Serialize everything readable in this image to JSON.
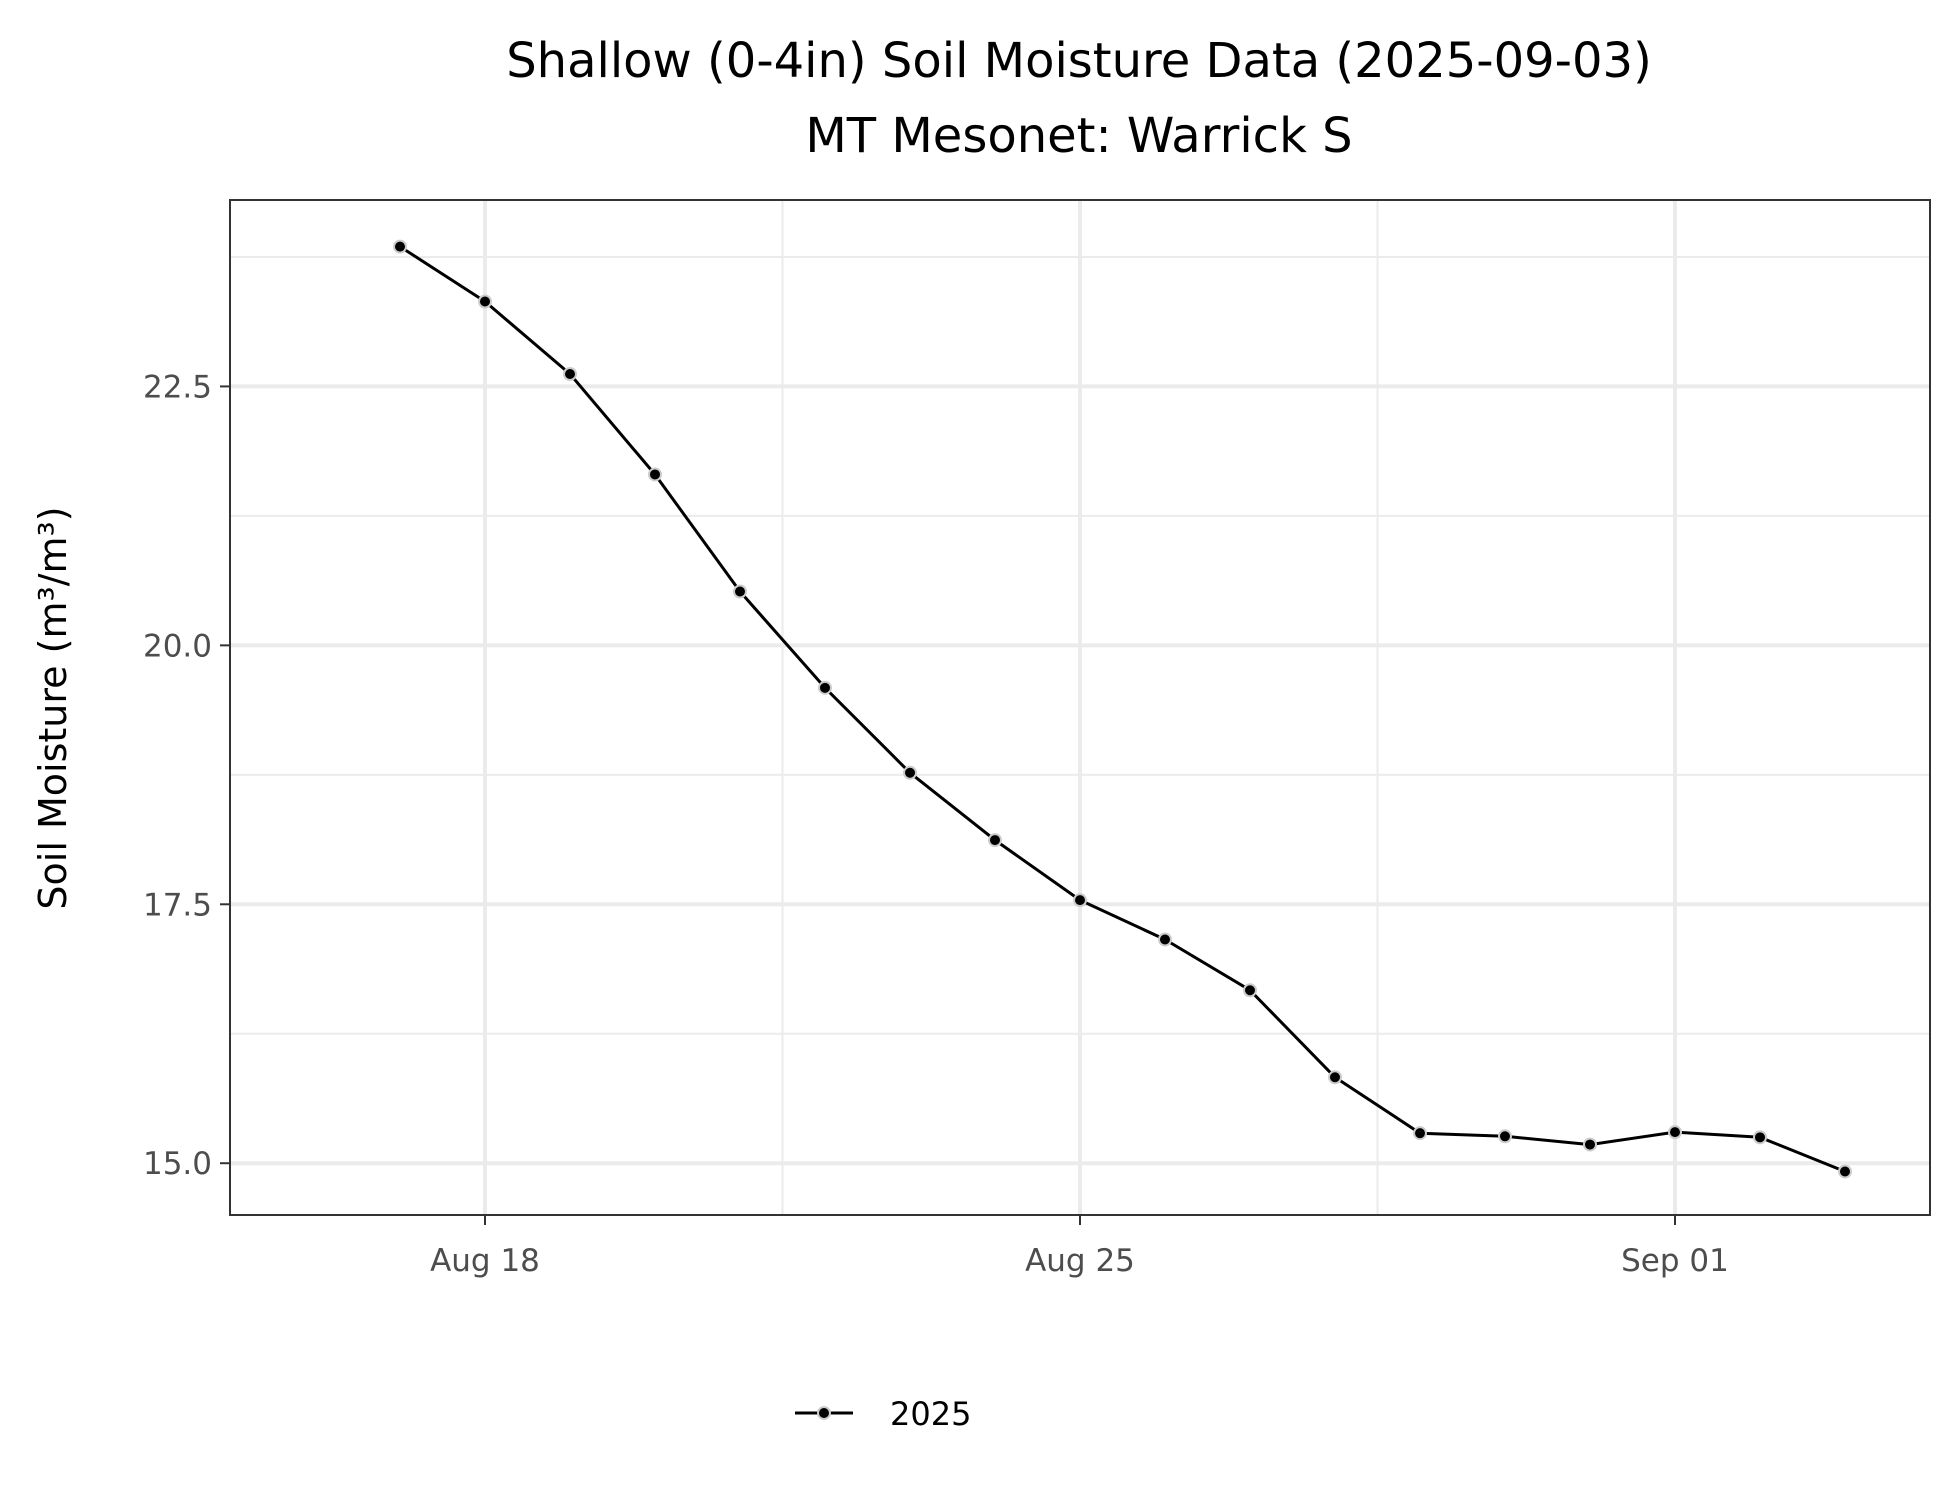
{
  "chart_data": {
    "type": "line",
    "title": "Shallow (0-4in) Soil Moisture Data (2025-09-03)",
    "subtitle": "MT Mesonet: Warrick S",
    "xlabel": "",
    "ylabel": "Soil Moisture (m³/m³)",
    "x_ticks": [
      {
        "date": "2025-08-18",
        "label": "Aug 18"
      },
      {
        "date": "2025-08-25",
        "label": "Aug 25"
      },
      {
        "date": "2025-09-01",
        "label": "Sep 01"
      }
    ],
    "y_ticks": [
      {
        "value": 15.0,
        "label": "15.0"
      },
      {
        "value": 17.5,
        "label": "17.5"
      },
      {
        "value": 20.0,
        "label": "20.0"
      },
      {
        "value": 22.5,
        "label": "22.5"
      }
    ],
    "xlim": [
      "2025-08-15",
      "2025-09-04"
    ],
    "ylim": [
      14.5,
      24.3
    ],
    "grid": true,
    "legend": {
      "position": "bottom",
      "entries": [
        "2025"
      ]
    },
    "series": [
      {
        "name": "2025",
        "color": "#000000",
        "x": [
          "2025-08-17",
          "2025-08-18",
          "2025-08-19",
          "2025-08-20",
          "2025-08-21",
          "2025-08-22",
          "2025-08-23",
          "2025-08-24",
          "2025-08-25",
          "2025-08-26",
          "2025-08-27",
          "2025-08-28",
          "2025-08-29",
          "2025-08-30",
          "2025-08-31",
          "2025-09-01",
          "2025-09-02",
          "2025-09-03"
        ],
        "values": [
          23.85,
          23.32,
          22.62,
          21.65,
          20.52,
          19.59,
          18.77,
          18.12,
          17.54,
          17.16,
          16.67,
          15.83,
          15.29,
          15.26,
          15.18,
          15.3,
          15.25,
          14.92
        ]
      }
    ]
  }
}
